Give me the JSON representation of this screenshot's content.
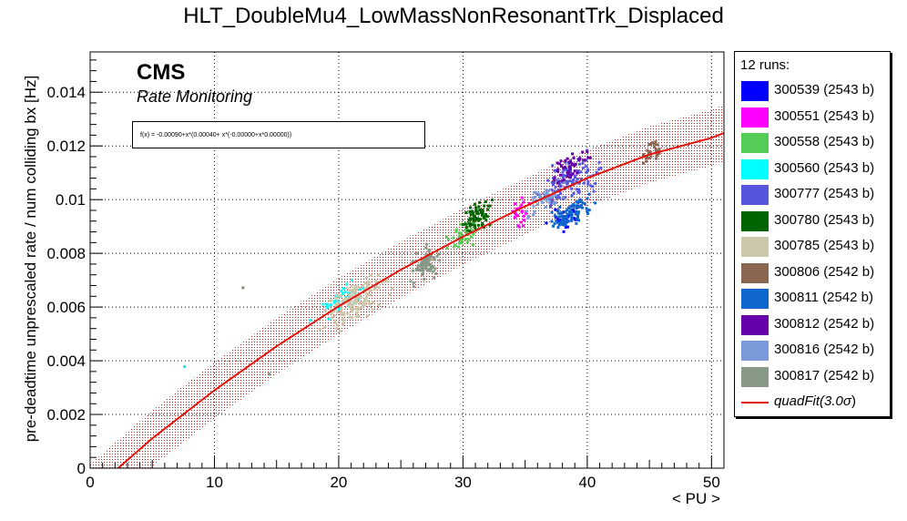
{
  "title": "HLT_DoubleMu4_LowMassNonResonantTrk_Displaced",
  "cms_label": "CMS",
  "cms_sublabel": "Rate Monitoring",
  "fit_formula": "f(x) = -0.00090+x*(0.00040+ x*(-0.00000+x*0.00000))",
  "legend_header": "12 runs:",
  "colors": {
    "fit_line": "#e3120b",
    "band": "#b22222",
    "outlier_cyan": "#22e5e5",
    "outlier_gray": "#8a8a7a"
  },
  "chart_data": {
    "type": "scatter",
    "title": "HLT_DoubleMu4_LowMassNonResonantTrk_Displaced",
    "xlabel": "< PU >",
    "ylabel": "pre-deadtime unprescaled rate / num colliding bx [Hz]",
    "xlim": [
      0,
      51
    ],
    "ylim": [
      0,
      0.0155
    ],
    "xticks": [
      0,
      10,
      20,
      30,
      40,
      50
    ],
    "yticks": [
      0,
      0.002,
      0.004,
      0.006,
      0.008,
      0.01,
      0.012,
      0.014
    ],
    "ytick_labels": [
      "0",
      "0.002",
      "0.004",
      "0.006",
      "0.008",
      "0.01",
      "0.012",
      "0.014"
    ],
    "grid": true,
    "legend_position": "right outside",
    "fit": {
      "name": "quadFit(3.0σ)",
      "label_plain": "quadFit(3.0",
      "label_sigma": "σ",
      "label_close": ")",
      "color": "#e3120b",
      "x": [
        0,
        2.25,
        5,
        10,
        15,
        20,
        25,
        30,
        35,
        40,
        45,
        50,
        51
      ],
      "y": [
        -0.0009,
        0,
        0.00111,
        0.0029,
        0.00454,
        0.00603,
        0.00739,
        0.00862,
        0.00975,
        0.0108,
        0.01168,
        0.0123,
        0.01248
      ],
      "band_halfwidth": 0.00105
    },
    "series": [
      {
        "name": "300539 (2543 b)",
        "color": "#0000ff",
        "x_range": [
          36,
          40
        ],
        "center": [
          38.3,
          0.00925
        ],
        "spread": [
          1.1,
          0.00045
        ],
        "n": 30
      },
      {
        "name": "300551 (2543 b)",
        "color": "#ff00ff",
        "x_range": [
          33.5,
          35.5
        ],
        "center": [
          34.6,
          0.0095
        ],
        "spread": [
          0.6,
          0.00045
        ],
        "n": 25
      },
      {
        "name": "300558 (2543 b)",
        "color": "#55cc55",
        "x_range": [
          28,
          32
        ],
        "center": [
          30,
          0.0087
        ],
        "spread": [
          1.1,
          0.0004
        ],
        "n": 45
      },
      {
        "name": "300560 (2543 b)",
        "color": "#00ffff",
        "x_range": [
          17,
          24
        ],
        "center": [
          20.3,
          0.0063
        ],
        "spread": [
          1.8,
          0.0004
        ],
        "n": 40
      },
      {
        "name": "300777 (2543 b)",
        "color": "#5555dd",
        "x_range": [
          35,
          43
        ],
        "center": [
          38.8,
          0.0107
        ],
        "spread": [
          2.0,
          0.00065
        ],
        "n": 120
      },
      {
        "name": "300780 (2543 b)",
        "color": "#006400",
        "x_range": [
          29,
          33
        ],
        "center": [
          31.0,
          0.0093
        ],
        "spread": [
          1.0,
          0.00045
        ],
        "n": 70
      },
      {
        "name": "300785 (2543 b)",
        "color": "#ccc6aa",
        "x_range": [
          17,
          26
        ],
        "center": [
          21.3,
          0.0062
        ],
        "spread": [
          2.2,
          0.00065
        ],
        "n": 150
      },
      {
        "name": "300806 (2542 b)",
        "color": "#8b6650",
        "x_range": [
          44,
          46
        ],
        "center": [
          45.2,
          0.0118
        ],
        "spread": [
          0.5,
          0.0004
        ],
        "n": 30
      },
      {
        "name": "300811 (2542 b)",
        "color": "#0f66cc",
        "x_range": [
          36,
          42
        ],
        "center": [
          38.8,
          0.0095
        ],
        "spread": [
          1.5,
          0.00045
        ],
        "n": 90
      },
      {
        "name": "300812 (2542 b)",
        "color": "#6600aa",
        "x_range": [
          36,
          42
        ],
        "center": [
          38.7,
          0.0112
        ],
        "spread": [
          1.5,
          0.00045
        ],
        "n": 50
      },
      {
        "name": "300816 (2542 b)",
        "color": "#7b9ad9",
        "x_range": [
          34,
          40
        ],
        "center": [
          36.6,
          0.0101
        ],
        "spread": [
          1.4,
          0.00045
        ],
        "n": 50
      },
      {
        "name": "300817 (2542 b)",
        "color": "#889988",
        "x_range": [
          25,
          29
        ],
        "center": [
          27.0,
          0.0076
        ],
        "spread": [
          1.0,
          0.00045
        ],
        "n": 90
      }
    ],
    "outliers": [
      {
        "x": 7.6,
        "y": 0.00378,
        "color": "#22e5e5"
      },
      {
        "x": 12.3,
        "y": 0.00672,
        "color": "#8a8a7a"
      },
      {
        "x": 14.4,
        "y": 0.0035,
        "color": "#8a8a7a"
      }
    ]
  }
}
